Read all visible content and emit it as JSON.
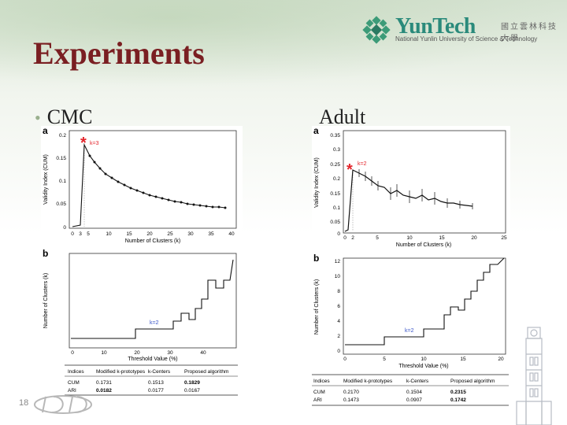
{
  "slide": {
    "title": "Experiments",
    "bullet_left": "CMC",
    "label_right": "Adult",
    "slide_number": "18"
  },
  "logo": {
    "name": "YunTech",
    "name_cn": "國立雲林科技大學",
    "name_en": "National Yunlin University of Science & Technology"
  },
  "colors": {
    "title": "#7a1f22",
    "logo_teal": "#2a8a7b",
    "accent_red": "#e3242b",
    "annotation_blue": "#3a55c8"
  },
  "cmc": {
    "panel_a": {
      "letter": "a",
      "ylabel": "Validity Index (CUM)",
      "xlabel": "Number of Clusters (k)",
      "annotation": "k=3",
      "yticks": [
        "0.2",
        "0.15",
        "0.1",
        "0.05",
        "0"
      ],
      "xticks": [
        "0",
        "3",
        "5",
        "10",
        "15",
        "20",
        "25",
        "30",
        "35",
        "40"
      ]
    },
    "panel_b": {
      "letter": "b",
      "ylabel": "Number of Clusters (k)",
      "xlabel": "Threshold Value (%)",
      "annotation": "k=2",
      "xticks": [
        "0",
        "10",
        "20",
        "30",
        "40"
      ]
    },
    "table": {
      "headers": [
        "Indices",
        "Modified k-prototypes",
        "k-Centers",
        "Proposed algorithm"
      ],
      "rows": [
        [
          "CUM",
          "0.1731",
          "0.1513",
          "0.1829"
        ],
        [
          "ARI",
          "0.0182",
          "0.0177",
          "0.0167"
        ]
      ]
    }
  },
  "adult": {
    "panel_a": {
      "letter": "a",
      "ylabel": "Validity Index (CUM)",
      "xlabel": "Number of Clusters (k)",
      "annotation": "k=2",
      "yticks": [
        "0.35",
        "0.3",
        "0.25",
        "0.2",
        "0.15",
        "0.1",
        "0.05",
        "0"
      ],
      "xticks": [
        "0",
        "2",
        "5",
        "10",
        "15",
        "20",
        "25"
      ]
    },
    "panel_b": {
      "letter": "b",
      "ylabel": "Number of Clusters (k)",
      "xlabel": "Threshold Value (%)",
      "annotation": "k=2",
      "yticks": [
        "12",
        "10",
        "8",
        "6",
        "4",
        "2",
        "0"
      ],
      "xticks": [
        "0",
        "5",
        "10",
        "15",
        "20"
      ]
    },
    "table": {
      "headers": [
        "Indices",
        "Modified k-prototypes",
        "k-Centers",
        "Proposed algorithm"
      ],
      "rows": [
        [
          "CUM",
          "0.2170",
          "0.1504",
          "0.2315"
        ],
        [
          "ARI",
          "0.1473",
          "0.0907",
          "0.1742"
        ]
      ]
    }
  }
}
